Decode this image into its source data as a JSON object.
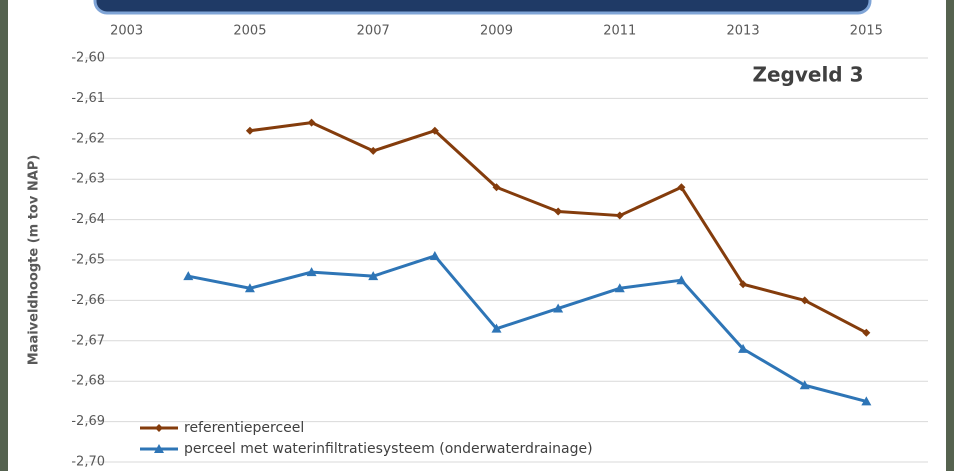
{
  "chart_data": {
    "type": "line",
    "annotation": "Zegveld 3",
    "y_label": "Maaiveldhoogte (m tov NAP)",
    "xlim": [
      2002,
      2016
    ],
    "xticks": [
      2003,
      2005,
      2007,
      2009,
      2011,
      2013,
      2015
    ],
    "ylim": [
      -2.7,
      -2.6
    ],
    "yticks": [
      {
        "value": -2.6,
        "label": "-2,60"
      },
      {
        "value": -2.61,
        "label": "-2,61"
      },
      {
        "value": -2.62,
        "label": "-2,62"
      },
      {
        "value": -2.63,
        "label": "-2,63"
      },
      {
        "value": -2.64,
        "label": "-2,64"
      },
      {
        "value": -2.65,
        "label": "-2,65"
      },
      {
        "value": -2.66,
        "label": "-2,66"
      },
      {
        "value": -2.67,
        "label": "-2,67"
      },
      {
        "value": -2.68,
        "label": "-2,68"
      },
      {
        "value": -2.69,
        "label": "-2,69"
      },
      {
        "value": -2.7,
        "label": "-2,70"
      }
    ],
    "grid": true,
    "legend": "lower left",
    "series": [
      {
        "name": "referentieperceel",
        "color": "#843c0c",
        "marker": "diamond",
        "x": [
          2005,
          2006,
          2007,
          2008,
          2009,
          2010,
          2011,
          2012,
          2013,
          2014,
          2015
        ],
        "values": [
          -2.618,
          -2.616,
          -2.623,
          -2.618,
          -2.632,
          -2.638,
          -2.639,
          -2.632,
          -2.656,
          -2.66,
          -2.668
        ]
      },
      {
        "name": "perceel met waterinfiltratiesysteem (onderwaterdrainage)",
        "color": "#2e75b6",
        "marker": "triangle",
        "x": [
          2004,
          2005,
          2006,
          2007,
          2008,
          2009,
          2010,
          2011,
          2012,
          2013,
          2014,
          2015
        ],
        "values": [
          -2.654,
          -2.657,
          -2.653,
          -2.654,
          -2.649,
          -2.667,
          -2.662,
          -2.657,
          -2.655,
          -2.672,
          -2.681,
          -2.685
        ]
      }
    ]
  }
}
